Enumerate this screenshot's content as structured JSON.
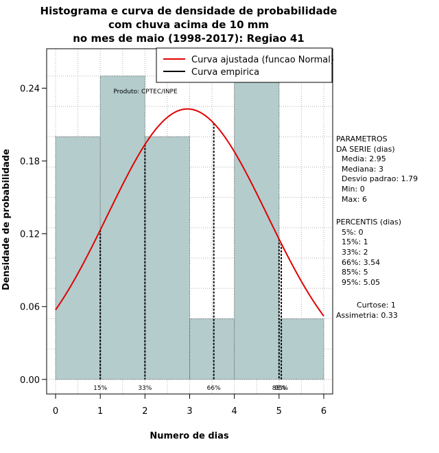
{
  "chart_data": {
    "type": "bar",
    "title_lines": [
      "Histograma e curva de densidade de probabilidade",
      "com chuva acima de 10 mm",
      "no mes de maio (1998-2017): Regiao 41"
    ],
    "xlabel": "Numero de dias",
    "ylabel": "Densidade de probabilidade",
    "xlim": [
      -0.2,
      6.2
    ],
    "ylim": [
      -0.012,
      0.2725
    ],
    "x_ticks": [
      0,
      1,
      2,
      3,
      4,
      5,
      6
    ],
    "y_ticks": [
      0.0,
      0.06,
      0.12,
      0.18,
      0.24
    ],
    "y_tick_labels": [
      "0.00",
      "0.06",
      "0.12",
      "0.18",
      "0.24"
    ],
    "grid": true,
    "bins": [
      {
        "start": 0,
        "end": 1,
        "density": 0.2
      },
      {
        "start": 1,
        "end": 2,
        "density": 0.25
      },
      {
        "start": 2,
        "end": 3,
        "density": 0.2
      },
      {
        "start": 3,
        "end": 4,
        "density": 0.05
      },
      {
        "start": 4,
        "end": 5,
        "density": 0.25
      },
      {
        "start": 5,
        "end": 6,
        "density": 0.05
      }
    ],
    "bar_color": "#b4cccc",
    "normal_curve": {
      "mean": 2.95,
      "sd": 1.79,
      "x_range": [
        0,
        6
      ],
      "color": "#e00000"
    },
    "percentile_lines": [
      {
        "x": 1,
        "label": "15%"
      },
      {
        "x": 2,
        "label": "33%"
      },
      {
        "x": 3.54,
        "label": "66%"
      },
      {
        "x": 5,
        "label": "85%"
      },
      {
        "x": 5.05,
        "label": "95%"
      }
    ],
    "legend": {
      "placement": "top-right",
      "entries": [
        {
          "label": "Curva ajustada (funcao Normal)",
          "color": "#e00000"
        },
        {
          "label": "Curva empirica",
          "color": "#000000"
        }
      ]
    },
    "credit": "Produto: CPTEC/INPE"
  },
  "side_panel": {
    "params_title_1": "PARAMETROS",
    "params_title_2": "DA SERIE (dias)",
    "media": "Media: 2.95",
    "mediana": "Mediana: 3",
    "desvio": "Desvio padrao: 1.79",
    "min": "Min: 0",
    "max": "Max: 6",
    "pct_title": "PERCENTIS (dias)",
    "p5": "5%: 0",
    "p15": "15%: 1",
    "p33": "33%: 2",
    "p66": "66%: 3.54",
    "p85": "85%: 5",
    "p95": "95%: 5.05",
    "curtose": "Curtose: 1",
    "assimetria": "Assimetria: 0.33"
  }
}
